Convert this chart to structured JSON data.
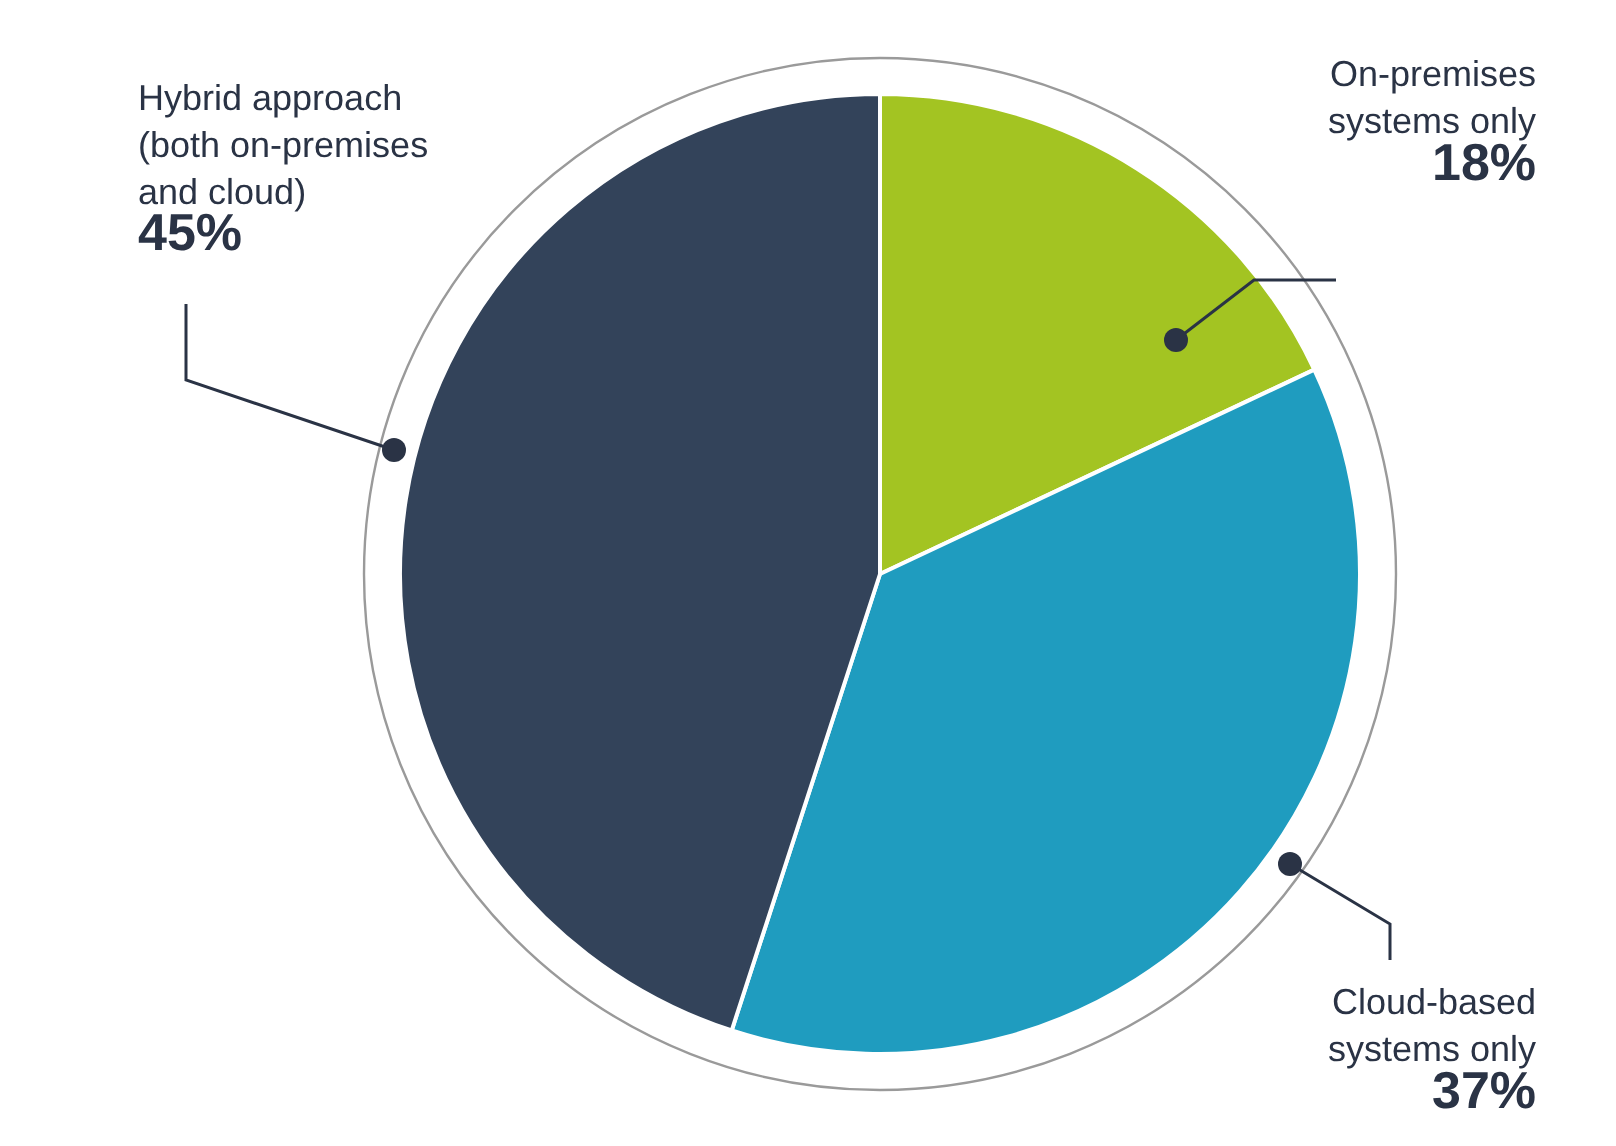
{
  "chart_data": {
    "type": "pie",
    "categories": [
      "On-premises\nsystems only",
      "Cloud-based\nsystems only",
      "Hybrid approach\n(both on-premises\nand cloud)"
    ],
    "values": [
      18,
      37,
      45
    ],
    "value_labels": [
      "18%",
      "37%",
      "45%"
    ],
    "colors": [
      "#a3c422",
      "#1f9cbf",
      "#33435a"
    ]
  }
}
